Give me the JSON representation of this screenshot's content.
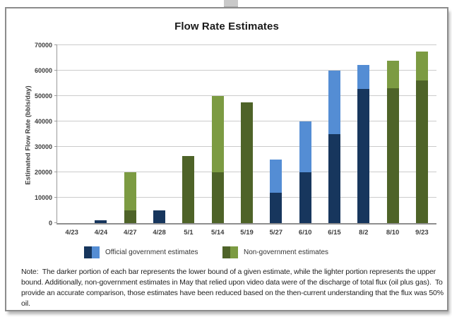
{
  "chart_data": {
    "type": "bar",
    "title": "Flow Rate Estimates",
    "ylabel": "Estimated Flow Rate (bbls/day)",
    "xlabel": "",
    "ylim": [
      0,
      70000
    ],
    "ytick_step": 10000,
    "grid": "horizontal-on",
    "legend_position": "bottom",
    "bar_meaning": "dark segment = lower bound of estimate, light segment = upper bound",
    "categories": [
      "4/23",
      "4/24",
      "4/27",
      "4/28",
      "5/1",
      "5/14",
      "5/19",
      "5/27",
      "6/10",
      "6/15",
      "8/2",
      "8/10",
      "9/23"
    ],
    "bars": [
      {
        "category": "4/23",
        "group": "none",
        "lower": 0,
        "upper": 0
      },
      {
        "category": "4/24",
        "group": "official",
        "lower": 1000,
        "upper": 1000
      },
      {
        "category": "4/27",
        "group": "non_government",
        "lower": 5000,
        "upper": 20000
      },
      {
        "category": "4/28",
        "group": "official",
        "lower": 5000,
        "upper": 5000
      },
      {
        "category": "5/1",
        "group": "non_government",
        "lower": 26500,
        "upper": 26500
      },
      {
        "category": "5/14",
        "group": "non_government",
        "lower": 20000,
        "upper": 50000
      },
      {
        "category": "5/19",
        "group": "non_government",
        "lower": 47500,
        "upper": 47500
      },
      {
        "category": "5/27",
        "group": "official",
        "lower": 12000,
        "upper": 25000
      },
      {
        "category": "6/10",
        "group": "official",
        "lower": 20000,
        "upper": 40000
      },
      {
        "category": "6/15",
        "group": "official",
        "lower": 35000,
        "upper": 60000
      },
      {
        "category": "8/2",
        "group": "official",
        "lower": 52700,
        "upper": 62200
      },
      {
        "category": "8/10",
        "group": "non_government",
        "lower": 53000,
        "upper": 64000
      },
      {
        "category": "9/23",
        "group": "non_government",
        "lower": 56000,
        "upper": 67500
      }
    ],
    "legend": [
      {
        "label": "Official government estimates",
        "group": "official"
      },
      {
        "label": "Non-government estimates",
        "group": "non_government"
      }
    ],
    "colors": {
      "official": {
        "lower": "#17365d",
        "upper": "#548dd4"
      },
      "non_government": {
        "lower": "#4e6328",
        "upper": "#7c9b42"
      },
      "gridline": "#cbcbcb",
      "axis": "#9a9a9a"
    }
  },
  "note": {
    "text": "Note:  The darker portion of each bar represents the lower bound of a given estimate, while the lighter portion represents the upper bound. Additionally, non-government estimates in May that relied upon video data were of the discharge of total flux (oil plus gas).  To provide an accurate comparison, those estimates have been reduced based on the then-current understanding that the flux was 50% oil."
  }
}
